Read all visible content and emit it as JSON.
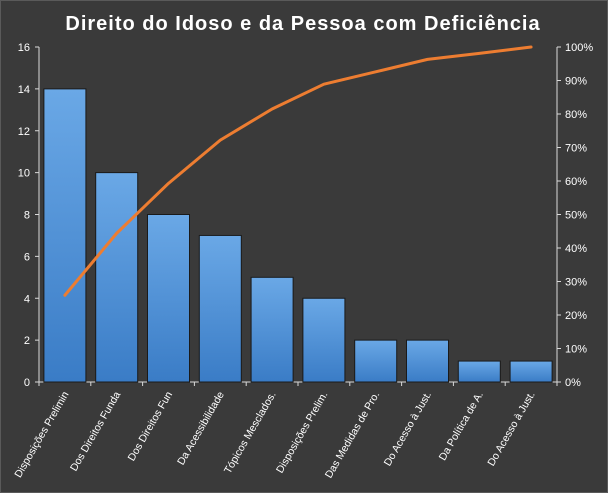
{
  "chart_data": {
    "type": "bar",
    "title": "Direito do Idoso e da Pessoa com Deficiência",
    "categories": [
      "Disposições Prelimin",
      "Dos Direitos Funda",
      "Dos Direitos Fun",
      "Da Acessibilidade",
      "Tópicos Mesclados.",
      "Disposições Prelim.",
      "Das Medidas de Pro.",
      "Do Acesso à Just.",
      "Da Política de A.",
      "Do Acesso à Just."
    ],
    "series": [
      {
        "type": "bar",
        "values": [
          14,
          10,
          8,
          7,
          5,
          4,
          2,
          2,
          1,
          1
        ],
        "color": "#4a8fd6"
      },
      {
        "type": "line",
        "axis": "right",
        "values": [
          25.9,
          44.4,
          59.3,
          72.2,
          81.5,
          88.9,
          92.6,
          96.3,
          98.1,
          100
        ],
        "color": "#ed7d31"
      }
    ],
    "y_left": {
      "min": 0,
      "max": 16,
      "ticks": [
        "0",
        "2",
        "4",
        "6",
        "8",
        "10",
        "12",
        "14",
        "16"
      ]
    },
    "y_right": {
      "min": 0,
      "max": 100,
      "ticks": [
        "0%",
        "10%",
        "20%",
        "30%",
        "40%",
        "50%",
        "60%",
        "70%",
        "80%",
        "90%",
        "100%"
      ]
    },
    "grid": false,
    "legend": "none"
  },
  "colors": {
    "background": "#3a3a3a",
    "text": "#ffffff",
    "bar": "#4a8fd6",
    "line": "#ed7d31",
    "axis": "#d9d9d9"
  }
}
